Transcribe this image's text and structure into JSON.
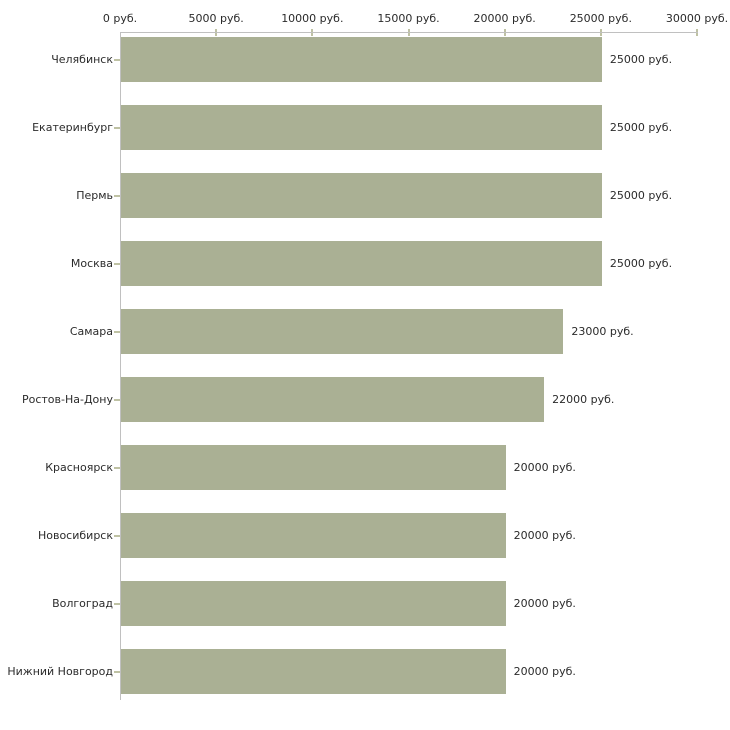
{
  "chart_data": {
    "type": "bar",
    "orientation": "horizontal",
    "title": "",
    "xlabel": "",
    "ylabel": "",
    "unit": "руб.",
    "xlim": [
      0,
      30000
    ],
    "x_ticks": [
      0,
      5000,
      10000,
      15000,
      20000,
      25000,
      30000
    ],
    "x_tick_labels": [
      "0 руб.",
      "5000 руб.",
      "10000 руб.",
      "15000 руб.",
      "20000 руб.",
      "25000 руб.",
      "30000 руб."
    ],
    "categories": [
      "Челябинск",
      "Екатеринбург",
      "Пермь",
      "Москва",
      "Самара",
      "Ростов-На-Дону",
      "Красноярск",
      "Новосибирск",
      "Волгоград",
      "Нижний Новгород"
    ],
    "values": [
      25000,
      25000,
      25000,
      25000,
      23000,
      22000,
      20000,
      20000,
      20000,
      20000
    ],
    "value_labels": [
      "25000 руб.",
      "25000 руб.",
      "25000 руб.",
      "25000 руб.",
      "23000 руб.",
      "22000 руб.",
      "20000 руб.",
      "20000 руб.",
      "20000 руб.",
      "20000 руб."
    ],
    "legend": null,
    "grid": false,
    "colors": {
      "bar": "#aab094",
      "axis_line": "#c0c0c0",
      "tick_mark": "#bfc2a4",
      "text": "#2b2b2b",
      "background": "#ffffff"
    }
  }
}
